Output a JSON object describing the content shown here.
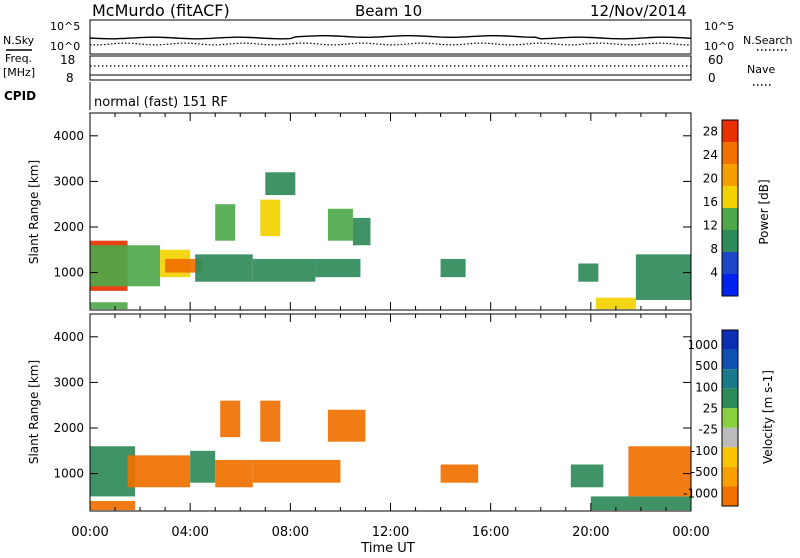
{
  "header": {
    "station": "McMurdo (fitACF)",
    "beam": "Beam 10",
    "date": "12/Nov/2014"
  },
  "summary": {
    "nsky_label": "N.Sky",
    "nsearch_label": "N.Search",
    "scale_top_left": "10^5",
    "scale_bottom_left": "10^0",
    "scale_top_right": "10^5",
    "scale_bottom_right": "10^0",
    "freq_label": "Freq.",
    "freq_unit": "[MHz]",
    "freq_top": "18",
    "freq_bottom": "8",
    "nave_label": "Nave",
    "nave_top": "60",
    "nave_bottom": "0",
    "cpid_label": "CPID",
    "cpid_text": "normal (fast) 151 RF"
  },
  "colors": {
    "power_scale": [
      "#0022ee",
      "#1d47c8",
      "#2f8a5a",
      "#4fa84b",
      "#f2d200",
      "#f5a000",
      "#f07000",
      "#e83000"
    ],
    "velocity_scale": [
      "#e80000",
      "#f03000",
      "#f07000",
      "#f7a000",
      "#f8c400",
      "#bbbbbb",
      "#88d040",
      "#2f8a5a",
      "#1a7a8a",
      "#1050b0",
      "#0b2fb0"
    ]
  },
  "chart_data": [
    {
      "type": "heatmap",
      "title": "",
      "xlabel": "Time UT",
      "ylabel": "Slant Range [km]",
      "colorbar_label": "Power [dB]",
      "x_ticks": [
        "00:00",
        "04:00",
        "08:00",
        "12:00",
        "16:00",
        "20:00",
        "00:00"
      ],
      "y_ticks": [
        "1000",
        "2000",
        "3000",
        "4000"
      ],
      "ylim": [
        180,
        4500
      ],
      "colorbar_ticks": [
        "4",
        "8",
        "12",
        "16",
        "20",
        "24",
        "28"
      ],
      "colorbar_range": [
        0,
        30
      ],
      "regions": [
        {
          "t0": 0.0,
          "t1": 1.5,
          "r0": 600,
          "r1": 1700,
          "level": 27
        },
        {
          "t0": 0.0,
          "t1": 2.8,
          "r0": 700,
          "r1": 1600,
          "level": 14
        },
        {
          "t0": 2.8,
          "t1": 4.0,
          "r0": 900,
          "r1": 1500,
          "level": 18
        },
        {
          "t0": 3.0,
          "t1": 4.5,
          "r0": 1000,
          "r1": 1300,
          "level": 25
        },
        {
          "t0": 4.2,
          "t1": 6.5,
          "r0": 800,
          "r1": 1400,
          "level": 9
        },
        {
          "t0": 5.0,
          "t1": 5.8,
          "r0": 1700,
          "r1": 2500,
          "level": 13
        },
        {
          "t0": 6.8,
          "t1": 7.6,
          "r0": 1800,
          "r1": 2600,
          "level": 18
        },
        {
          "t0": 7.0,
          "t1": 8.2,
          "r0": 2700,
          "r1": 3200,
          "level": 8
        },
        {
          "t0": 6.5,
          "t1": 9.0,
          "r0": 800,
          "r1": 1300,
          "level": 10
        },
        {
          "t0": 9.0,
          "t1": 10.8,
          "r0": 900,
          "r1": 1300,
          "level": 9
        },
        {
          "t0": 9.5,
          "t1": 10.5,
          "r0": 1700,
          "r1": 2400,
          "level": 12
        },
        {
          "t0": 10.5,
          "t1": 11.2,
          "r0": 1600,
          "r1": 2200,
          "level": 8
        },
        {
          "t0": 14.0,
          "t1": 15.0,
          "r0": 900,
          "r1": 1300,
          "level": 8
        },
        {
          "t0": 19.5,
          "t1": 20.3,
          "r0": 800,
          "r1": 1200,
          "level": 10
        },
        {
          "t0": 20.2,
          "t1": 21.8,
          "r0": 200,
          "r1": 450,
          "level": 18
        },
        {
          "t0": 21.8,
          "t1": 24.0,
          "r0": 400,
          "r1": 1400,
          "level": 8
        },
        {
          "t0": 0.0,
          "t1": 1.5,
          "r0": 200,
          "r1": 350,
          "level": 12
        }
      ]
    },
    {
      "type": "heatmap",
      "title": "",
      "xlabel": "Time UT",
      "ylabel": "Slant Range [km]",
      "colorbar_label": "Velocity [m s-1]",
      "x_ticks": [
        "00:00",
        "04:00",
        "08:00",
        "12:00",
        "16:00",
        "20:00",
        "00:00"
      ],
      "y_ticks": [
        "1000",
        "2000",
        "3000",
        "4000"
      ],
      "ylim": [
        180,
        4500
      ],
      "colorbar_ticks": [
        "1000",
        "500",
        "100",
        "25",
        "-25",
        "-100",
        "-500",
        "-1000"
      ],
      "regions": [
        {
          "t0": 0.0,
          "t1": 1.8,
          "r0": 500,
          "r1": 1600,
          "velocity": 150
        },
        {
          "t0": 1.5,
          "t1": 4.0,
          "r0": 700,
          "r1": 1400,
          "velocity": -150
        },
        {
          "t0": 4.0,
          "t1": 5.0,
          "r0": 800,
          "r1": 1500,
          "velocity": 150
        },
        {
          "t0": 5.0,
          "t1": 6.5,
          "r0": 700,
          "r1": 1300,
          "velocity": -150
        },
        {
          "t0": 5.2,
          "t1": 6.0,
          "r0": 1800,
          "r1": 2600,
          "velocity": -400
        },
        {
          "t0": 6.8,
          "t1": 7.6,
          "r0": 1700,
          "r1": 2600,
          "velocity": -400
        },
        {
          "t0": 6.5,
          "t1": 10.0,
          "r0": 800,
          "r1": 1300,
          "velocity": -150
        },
        {
          "t0": 9.5,
          "t1": 11.0,
          "r0": 1700,
          "r1": 2400,
          "velocity": -400
        },
        {
          "t0": 0.0,
          "t1": 1.8,
          "r0": 200,
          "r1": 400,
          "velocity": -150
        },
        {
          "t0": 14.0,
          "t1": 15.5,
          "r0": 800,
          "r1": 1200,
          "velocity": -150
        },
        {
          "t0": 19.2,
          "t1": 20.5,
          "r0": 700,
          "r1": 1200,
          "velocity": 150
        },
        {
          "t0": 20.0,
          "t1": 24.0,
          "r0": 200,
          "r1": 500,
          "velocity": 120
        },
        {
          "t0": 21.5,
          "t1": 24.0,
          "r0": 500,
          "r1": 1600,
          "velocity": -120
        }
      ]
    }
  ]
}
